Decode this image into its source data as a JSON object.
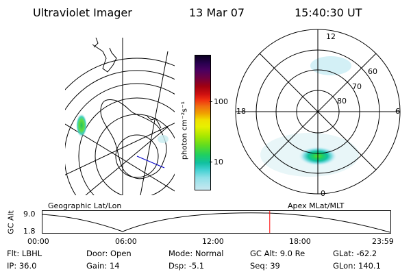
{
  "header": {
    "instrument": "Ultraviolet Imager",
    "date": "13 Mar 07",
    "time": "15:40:30 UT"
  },
  "colorbar": {
    "unit_label": "photon cm⁻²s⁻¹",
    "ticks": [
      "100",
      "10"
    ],
    "scale": "log",
    "colors": [
      "#0a0020",
      "#2a0050",
      "#4a0060",
      "#700040",
      "#a00010",
      "#d01010",
      "#f03010",
      "#f07010",
      "#f0a000",
      "#f0e000",
      "#e8f000",
      "#a8e800",
      "#60dc20",
      "#20d060",
      "#10c0a0",
      "#40d0d0",
      "#90e0e8",
      "#c8e8f0"
    ]
  },
  "panels": {
    "geo_label": "Geographic Lat/Lon",
    "mag_label": "Apex MLat/MLT",
    "mlt_labels": [
      "12",
      "18",
      "6",
      "0"
    ],
    "mlat_labels": [
      "60",
      "70",
      "80"
    ]
  },
  "altitude_plot": {
    "ylabel": "GC Alt",
    "yticks": [
      "9.0",
      "1.8"
    ],
    "xticks": [
      "00:00",
      "06:00",
      "12:00",
      "18:00",
      "23:59"
    ],
    "marker_time_hours": 15.675,
    "marker_color": "#ff0000"
  },
  "info": {
    "row1": [
      {
        "label": "Flt:",
        "value": "LBHL"
      },
      {
        "label": "Door:",
        "value": "Open"
      },
      {
        "label": "Mode:",
        "value": "Normal"
      },
      {
        "label": "GC Alt:",
        "value": "9.0 Re"
      },
      {
        "label": "GLat:",
        "value": "-62.2"
      }
    ],
    "row2": [
      {
        "label": "IP:",
        "value": "36.0"
      },
      {
        "label": "Gain:",
        "value": "14"
      },
      {
        "label": "Dsp:",
        "value": "-5.1"
      },
      {
        "label": "Seq:",
        "value": "39"
      },
      {
        "label": "GLon:",
        "value": "140.1"
      }
    ]
  }
}
